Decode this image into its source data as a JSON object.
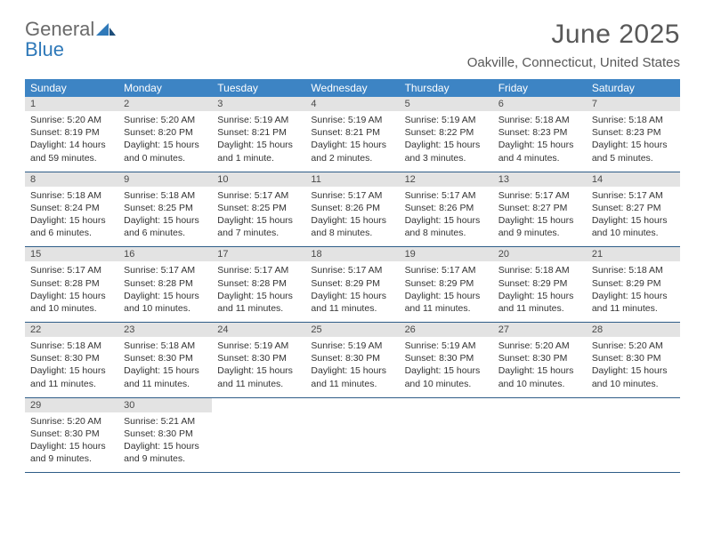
{
  "logo": {
    "general": "General",
    "blue": "Blue"
  },
  "title": "June 2025",
  "location": "Oakville, Connecticut, United States",
  "colors": {
    "header_bg": "#3d84c4",
    "header_text": "#ffffff",
    "daynum_bg": "#e3e3e3",
    "daynum_text": "#4a4a4a",
    "row_border": "#2f5d88",
    "title_color": "#585858",
    "logo_gray": "#6a6a6a",
    "logo_blue": "#2f79b9",
    "body_text": "#333333",
    "background": "#ffffff"
  },
  "typography": {
    "title_fontsize": 30,
    "location_fontsize": 15,
    "dow_fontsize": 12,
    "daynum_fontsize": 11,
    "body_fontsize": 10.5
  },
  "dow": [
    "Sunday",
    "Monday",
    "Tuesday",
    "Wednesday",
    "Thursday",
    "Friday",
    "Saturday"
  ],
  "weeks": [
    [
      {
        "n": "1",
        "sr": "Sunrise: 5:20 AM",
        "ss": "Sunset: 8:19 PM",
        "dl1": "Daylight: 14 hours",
        "dl2": "and 59 minutes."
      },
      {
        "n": "2",
        "sr": "Sunrise: 5:20 AM",
        "ss": "Sunset: 8:20 PM",
        "dl1": "Daylight: 15 hours",
        "dl2": "and 0 minutes."
      },
      {
        "n": "3",
        "sr": "Sunrise: 5:19 AM",
        "ss": "Sunset: 8:21 PM",
        "dl1": "Daylight: 15 hours",
        "dl2": "and 1 minute."
      },
      {
        "n": "4",
        "sr": "Sunrise: 5:19 AM",
        "ss": "Sunset: 8:21 PM",
        "dl1": "Daylight: 15 hours",
        "dl2": "and 2 minutes."
      },
      {
        "n": "5",
        "sr": "Sunrise: 5:19 AM",
        "ss": "Sunset: 8:22 PM",
        "dl1": "Daylight: 15 hours",
        "dl2": "and 3 minutes."
      },
      {
        "n": "6",
        "sr": "Sunrise: 5:18 AM",
        "ss": "Sunset: 8:23 PM",
        "dl1": "Daylight: 15 hours",
        "dl2": "and 4 minutes."
      },
      {
        "n": "7",
        "sr": "Sunrise: 5:18 AM",
        "ss": "Sunset: 8:23 PM",
        "dl1": "Daylight: 15 hours",
        "dl2": "and 5 minutes."
      }
    ],
    [
      {
        "n": "8",
        "sr": "Sunrise: 5:18 AM",
        "ss": "Sunset: 8:24 PM",
        "dl1": "Daylight: 15 hours",
        "dl2": "and 6 minutes."
      },
      {
        "n": "9",
        "sr": "Sunrise: 5:18 AM",
        "ss": "Sunset: 8:25 PM",
        "dl1": "Daylight: 15 hours",
        "dl2": "and 6 minutes."
      },
      {
        "n": "10",
        "sr": "Sunrise: 5:17 AM",
        "ss": "Sunset: 8:25 PM",
        "dl1": "Daylight: 15 hours",
        "dl2": "and 7 minutes."
      },
      {
        "n": "11",
        "sr": "Sunrise: 5:17 AM",
        "ss": "Sunset: 8:26 PM",
        "dl1": "Daylight: 15 hours",
        "dl2": "and 8 minutes."
      },
      {
        "n": "12",
        "sr": "Sunrise: 5:17 AM",
        "ss": "Sunset: 8:26 PM",
        "dl1": "Daylight: 15 hours",
        "dl2": "and 8 minutes."
      },
      {
        "n": "13",
        "sr": "Sunrise: 5:17 AM",
        "ss": "Sunset: 8:27 PM",
        "dl1": "Daylight: 15 hours",
        "dl2": "and 9 minutes."
      },
      {
        "n": "14",
        "sr": "Sunrise: 5:17 AM",
        "ss": "Sunset: 8:27 PM",
        "dl1": "Daylight: 15 hours",
        "dl2": "and 10 minutes."
      }
    ],
    [
      {
        "n": "15",
        "sr": "Sunrise: 5:17 AM",
        "ss": "Sunset: 8:28 PM",
        "dl1": "Daylight: 15 hours",
        "dl2": "and 10 minutes."
      },
      {
        "n": "16",
        "sr": "Sunrise: 5:17 AM",
        "ss": "Sunset: 8:28 PM",
        "dl1": "Daylight: 15 hours",
        "dl2": "and 10 minutes."
      },
      {
        "n": "17",
        "sr": "Sunrise: 5:17 AM",
        "ss": "Sunset: 8:28 PM",
        "dl1": "Daylight: 15 hours",
        "dl2": "and 11 minutes."
      },
      {
        "n": "18",
        "sr": "Sunrise: 5:17 AM",
        "ss": "Sunset: 8:29 PM",
        "dl1": "Daylight: 15 hours",
        "dl2": "and 11 minutes."
      },
      {
        "n": "19",
        "sr": "Sunrise: 5:17 AM",
        "ss": "Sunset: 8:29 PM",
        "dl1": "Daylight: 15 hours",
        "dl2": "and 11 minutes."
      },
      {
        "n": "20",
        "sr": "Sunrise: 5:18 AM",
        "ss": "Sunset: 8:29 PM",
        "dl1": "Daylight: 15 hours",
        "dl2": "and 11 minutes."
      },
      {
        "n": "21",
        "sr": "Sunrise: 5:18 AM",
        "ss": "Sunset: 8:29 PM",
        "dl1": "Daylight: 15 hours",
        "dl2": "and 11 minutes."
      }
    ],
    [
      {
        "n": "22",
        "sr": "Sunrise: 5:18 AM",
        "ss": "Sunset: 8:30 PM",
        "dl1": "Daylight: 15 hours",
        "dl2": "and 11 minutes."
      },
      {
        "n": "23",
        "sr": "Sunrise: 5:18 AM",
        "ss": "Sunset: 8:30 PM",
        "dl1": "Daylight: 15 hours",
        "dl2": "and 11 minutes."
      },
      {
        "n": "24",
        "sr": "Sunrise: 5:19 AM",
        "ss": "Sunset: 8:30 PM",
        "dl1": "Daylight: 15 hours",
        "dl2": "and 11 minutes."
      },
      {
        "n": "25",
        "sr": "Sunrise: 5:19 AM",
        "ss": "Sunset: 8:30 PM",
        "dl1": "Daylight: 15 hours",
        "dl2": "and 11 minutes."
      },
      {
        "n": "26",
        "sr": "Sunrise: 5:19 AM",
        "ss": "Sunset: 8:30 PM",
        "dl1": "Daylight: 15 hours",
        "dl2": "and 10 minutes."
      },
      {
        "n": "27",
        "sr": "Sunrise: 5:20 AM",
        "ss": "Sunset: 8:30 PM",
        "dl1": "Daylight: 15 hours",
        "dl2": "and 10 minutes."
      },
      {
        "n": "28",
        "sr": "Sunrise: 5:20 AM",
        "ss": "Sunset: 8:30 PM",
        "dl1": "Daylight: 15 hours",
        "dl2": "and 10 minutes."
      }
    ],
    [
      {
        "n": "29",
        "sr": "Sunrise: 5:20 AM",
        "ss": "Sunset: 8:30 PM",
        "dl1": "Daylight: 15 hours",
        "dl2": "and 9 minutes."
      },
      {
        "n": "30",
        "sr": "Sunrise: 5:21 AM",
        "ss": "Sunset: 8:30 PM",
        "dl1": "Daylight: 15 hours",
        "dl2": "and 9 minutes."
      },
      null,
      null,
      null,
      null,
      null
    ]
  ]
}
